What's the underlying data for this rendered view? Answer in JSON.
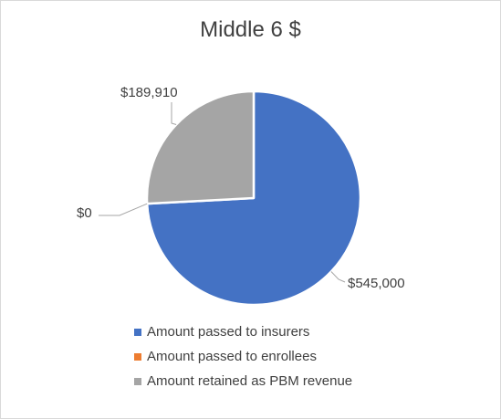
{
  "chart_data": {
    "type": "pie",
    "title": "Middle 6 $",
    "categories": [
      "Amount passed to insurers",
      "Amount passed to enrollees",
      "Amount retained as PBM revenue"
    ],
    "values": [
      545000,
      0,
      189910
    ],
    "data_labels": [
      "$545,000",
      "$0",
      "$189,910"
    ],
    "colors": [
      "#4472c4",
      "#ed7d31",
      "#a5a5a5"
    ],
    "legend_position": "bottom",
    "start_angle": "12 o'clock, clockwise"
  }
}
